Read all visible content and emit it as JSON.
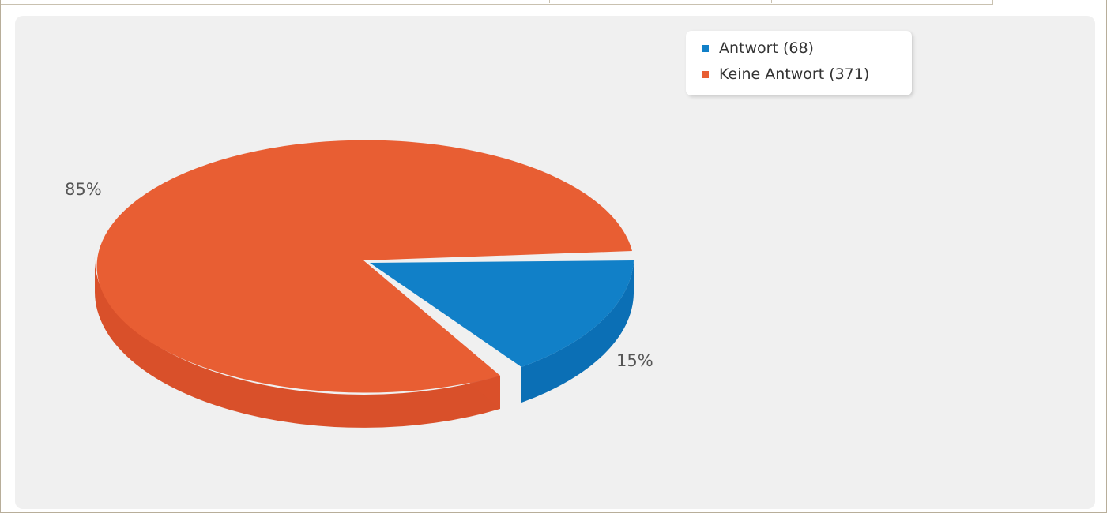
{
  "chart_data": {
    "type": "pie",
    "style": "3d",
    "slices": [
      {
        "label": "Antwort",
        "count": 68,
        "percent_label": "15%",
        "color": "#1180c8",
        "exploded": true
      },
      {
        "label": "Keine Antwort",
        "count": 371,
        "percent_label": "85%",
        "color": "#e85e33",
        "exploded": false
      }
    ],
    "legend": {
      "placement": "top-right",
      "entries": [
        "Antwort (68)",
        "Keine Antwort (371)"
      ]
    }
  },
  "colors": {
    "panel_bg": "#f0f0f0",
    "legend_bg": "#ffffff",
    "antwort_top": "#1180c8",
    "antwort_side": "#0b6fb5",
    "keine_top": "#e85e33",
    "keine_side": "#d9502a",
    "label_text": "#555555"
  }
}
